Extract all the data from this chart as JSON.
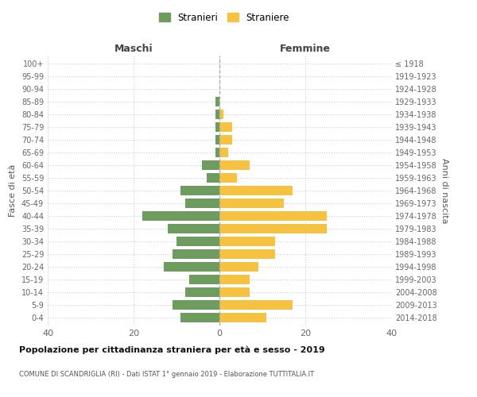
{
  "age_groups": [
    "100+",
    "95-99",
    "90-94",
    "85-89",
    "80-84",
    "75-79",
    "70-74",
    "65-69",
    "60-64",
    "55-59",
    "50-54",
    "45-49",
    "40-44",
    "35-39",
    "30-34",
    "25-29",
    "20-24",
    "15-19",
    "10-14",
    "5-9",
    "0-4"
  ],
  "birth_years": [
    "≤ 1918",
    "1919-1923",
    "1924-1928",
    "1929-1933",
    "1934-1938",
    "1939-1943",
    "1944-1948",
    "1949-1953",
    "1954-1958",
    "1959-1963",
    "1964-1968",
    "1969-1973",
    "1974-1978",
    "1979-1983",
    "1984-1988",
    "1989-1993",
    "1994-1998",
    "1999-2003",
    "2004-2008",
    "2009-2013",
    "2014-2018"
  ],
  "maschi": [
    0,
    0,
    0,
    1,
    1,
    1,
    1,
    1,
    4,
    3,
    9,
    8,
    18,
    12,
    10,
    11,
    13,
    7,
    8,
    11,
    9
  ],
  "femmine": [
    0,
    0,
    0,
    0,
    1,
    3,
    3,
    2,
    7,
    4,
    17,
    15,
    25,
    25,
    13,
    13,
    9,
    7,
    7,
    17,
    11
  ],
  "male_color": "#6e9b5e",
  "female_color": "#f5c242",
  "background_color": "#ffffff",
  "grid_color": "#cccccc",
  "title": "Popolazione per cittadinanza straniera per età e sesso - 2019",
  "subtitle": "COMUNE DI SCANDRIGLIA (RI) - Dati ISTAT 1° gennaio 2019 - Elaborazione TUTTITALIA.IT",
  "xlabel_left": "Maschi",
  "xlabel_right": "Femmine",
  "ylabel_left": "Fasce di età",
  "ylabel_right": "Anni di nascita",
  "legend_male": "Stranieri",
  "legend_female": "Straniere",
  "xlim": [
    -40,
    40
  ],
  "xticks": [
    -40,
    -20,
    0,
    20,
    40
  ],
  "xticklabels": [
    "40",
    "20",
    "0",
    "20",
    "40"
  ]
}
